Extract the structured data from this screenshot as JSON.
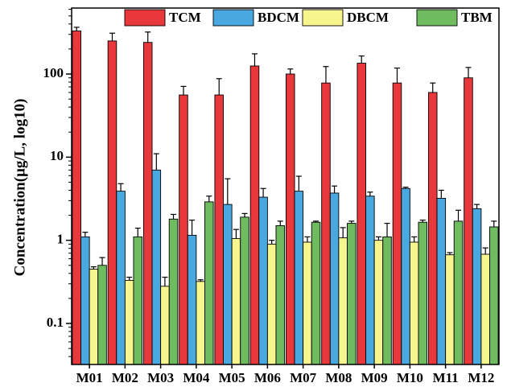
{
  "chart_data": {
    "type": "bar",
    "ylabel": "Concentration(μg/L, log10)",
    "yscale": "log",
    "ylim": [
      0.04,
      500
    ],
    "yticks": [
      {
        "value": 0.1,
        "label": "0.1"
      },
      {
        "value": 1,
        "label": "1"
      },
      {
        "value": 10,
        "label": "10"
      },
      {
        "value": 100,
        "label": "100"
      }
    ],
    "categories": [
      "M01",
      "M02",
      "M03",
      "M04",
      "M05",
      "M06",
      "M07",
      "M08",
      "M09",
      "M10",
      "M11",
      "M12"
    ],
    "legend_position": "top",
    "error_bars": true,
    "series": [
      {
        "name": "TCM",
        "color": "#e8383c",
        "values": [
          330,
          250,
          240,
          56,
          56,
          125,
          100,
          78,
          135,
          78,
          60,
          90
        ],
        "errors": [
          35,
          60,
          80,
          15,
          32,
          50,
          15,
          45,
          30,
          40,
          18,
          30
        ]
      },
      {
        "name": "BDCM",
        "color": "#4aa8e0",
        "values": [
          1.1,
          3.9,
          7.0,
          1.15,
          2.7,
          3.3,
          3.9,
          3.7,
          3.4,
          4.2,
          3.2,
          2.4
        ],
        "errors": [
          0.15,
          0.9,
          4.0,
          0.6,
          2.8,
          0.9,
          2.0,
          0.8,
          0.4,
          0.15,
          0.8,
          0.3
        ]
      },
      {
        "name": "DBCM",
        "color": "#f7f58e",
        "values": [
          0.45,
          0.33,
          0.28,
          0.32,
          1.05,
          0.9,
          0.95,
          1.07,
          1.0,
          0.95,
          0.67,
          0.68
        ],
        "errors": [
          0.03,
          0.03,
          0.08,
          0.015,
          0.3,
          0.1,
          0.15,
          0.35,
          0.1,
          0.15,
          0.04,
          0.13
        ]
      },
      {
        "name": "TBM",
        "color": "#6fbb5f",
        "values": [
          0.5,
          1.1,
          1.8,
          2.9,
          1.9,
          1.5,
          1.65,
          1.6,
          1.1,
          1.65,
          1.7,
          1.45
        ],
        "errors": [
          0.12,
          0.3,
          0.25,
          0.5,
          0.2,
          0.2,
          0.05,
          0.1,
          0.5,
          0.1,
          0.6,
          0.25
        ]
      }
    ]
  }
}
